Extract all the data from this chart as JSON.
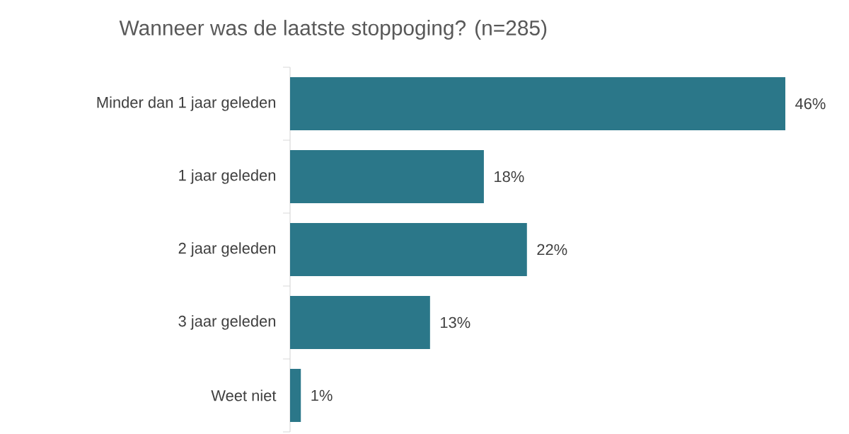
{
  "chart_data": {
    "type": "bar",
    "orientation": "horizontal",
    "title": "Wanneer was de laatste stoppoging? (n=285)",
    "categories": [
      "Minder dan 1 jaar geleden",
      "1 jaar geleden",
      "2 jaar geleden",
      "3 jaar geleden",
      "Weet niet"
    ],
    "values": [
      46,
      18,
      22,
      13,
      1
    ],
    "value_labels": [
      "46%",
      "18%",
      "22%",
      "13%",
      "1%"
    ],
    "color": "#2b7789"
  }
}
